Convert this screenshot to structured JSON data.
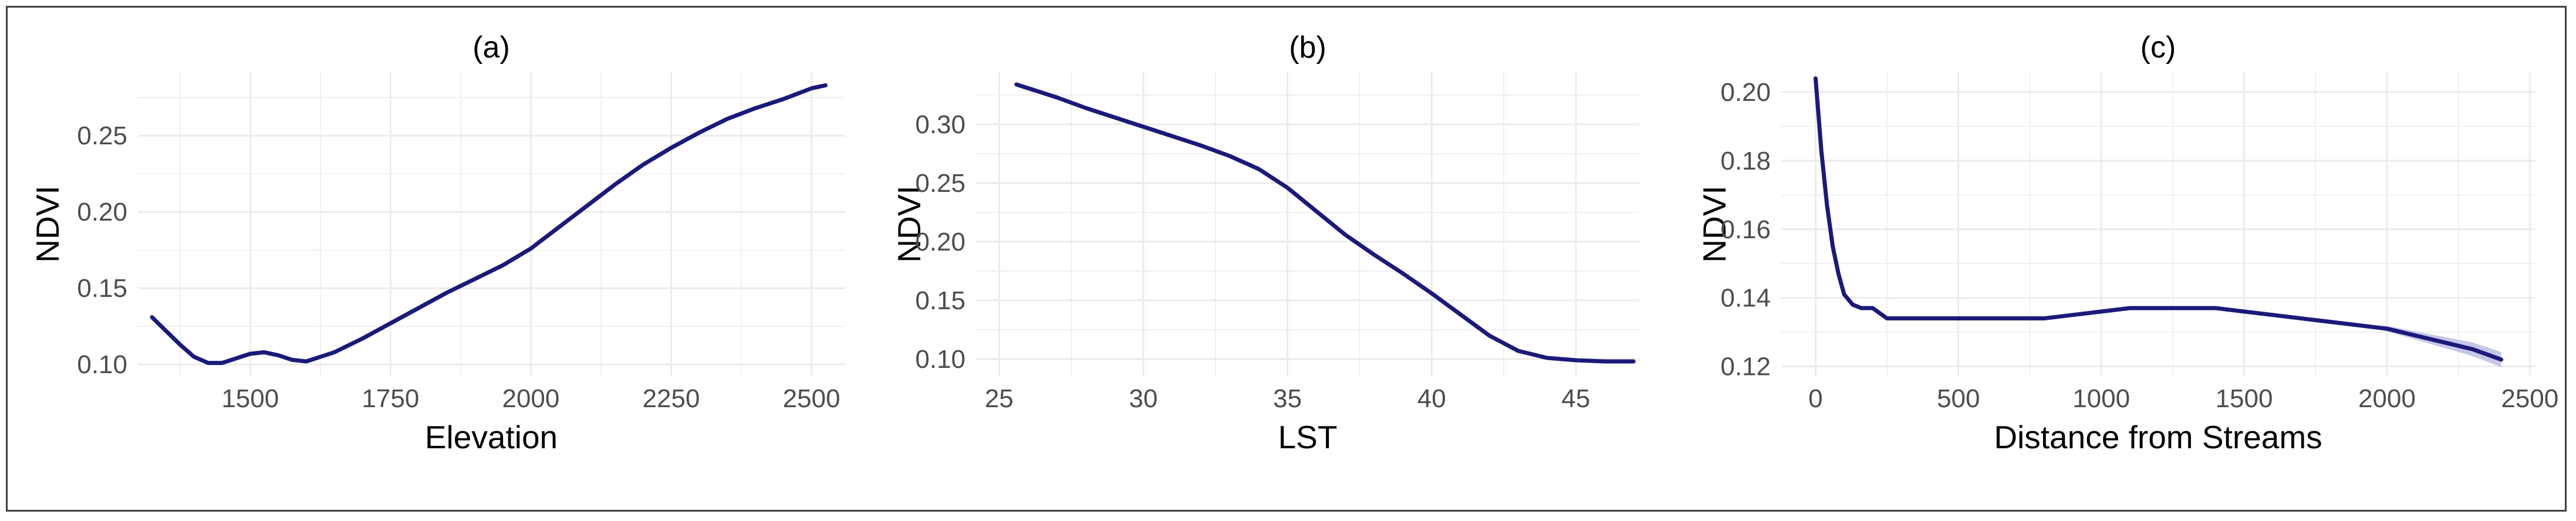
{
  "chart_data": [
    {
      "type": "line",
      "title": "(a)",
      "xlabel": "Elevation",
      "ylabel": "NDVI",
      "xlim": [
        1300,
        2560
      ],
      "ylim": [
        0.092,
        0.292
      ],
      "xticks": [
        1500,
        1750,
        2000,
        2250,
        2500
      ],
      "xtick_labels": [
        "1500",
        "1750",
        "2000",
        "2250",
        "2500"
      ],
      "yticks": [
        0.1,
        0.15,
        0.2,
        0.25
      ],
      "ytick_labels": [
        "0.10",
        "0.15",
        "0.20",
        "0.25"
      ],
      "grid": true,
      "line_color": "#1a1a7a",
      "series": [
        {
          "x": [
            1325,
            1350,
            1375,
            1400,
            1425,
            1450,
            1475,
            1500,
            1525,
            1550,
            1575,
            1600,
            1625,
            1650,
            1700,
            1750,
            1800,
            1850,
            1900,
            1950,
            2000,
            2050,
            2100,
            2150,
            2200,
            2250,
            2300,
            2350,
            2400,
            2450,
            2500,
            2525
          ],
          "y": [
            0.131,
            0.122,
            0.113,
            0.105,
            0.101,
            0.101,
            0.104,
            0.107,
            0.108,
            0.106,
            0.103,
            0.102,
            0.105,
            0.108,
            0.117,
            0.127,
            0.137,
            0.147,
            0.156,
            0.165,
            0.176,
            0.19,
            0.204,
            0.218,
            0.231,
            0.242,
            0.252,
            0.261,
            0.268,
            0.274,
            0.281,
            0.283
          ]
        }
      ]
    },
    {
      "type": "line",
      "title": "(b)",
      "xlabel": "LST",
      "ylabel": "NDVI",
      "xlim": [
        24.2,
        47.2
      ],
      "ylim": [
        0.085,
        0.345
      ],
      "xticks": [
        25,
        30,
        35,
        40,
        45
      ],
      "xtick_labels": [
        "25",
        "30",
        "35",
        "40",
        "45"
      ],
      "yticks": [
        0.1,
        0.15,
        0.2,
        0.25,
        0.3
      ],
      "ytick_labels": [
        "0.10",
        "0.15",
        "0.20",
        "0.25",
        "0.30"
      ],
      "grid": true,
      "line_color": "#1a1a7a",
      "series": [
        {
          "x": [
            25.6,
            27,
            28,
            29,
            30,
            31,
            32,
            33,
            34,
            35,
            36,
            37,
            38,
            39,
            40,
            41,
            42,
            43,
            44,
            45,
            46,
            47
          ],
          "y": [
            0.334,
            0.323,
            0.314,
            0.306,
            0.298,
            0.29,
            0.282,
            0.273,
            0.262,
            0.246,
            0.226,
            0.206,
            0.189,
            0.173,
            0.156,
            0.138,
            0.12,
            0.107,
            0.101,
            0.099,
            0.098,
            0.098
          ]
        }
      ]
    },
    {
      "type": "line",
      "title": "(c)",
      "xlabel": "Distance from Streams",
      "ylabel": "NDVI",
      "xlim": [
        -120,
        2520
      ],
      "ylim": [
        0.117,
        0.206
      ],
      "xticks": [
        0,
        500,
        1000,
        1500,
        2000,
        2500
      ],
      "xtick_labels": [
        "0",
        "500",
        "1000",
        "1500",
        "2000",
        "2500"
      ],
      "yticks": [
        0.12,
        0.14,
        0.16,
        0.18,
        0.2
      ],
      "ytick_labels": [
        "0.12",
        "0.14",
        "0.16",
        "0.18",
        "0.20"
      ],
      "grid": true,
      "line_color": "#1a1a7a",
      "band_color": "#b8b8e0",
      "series": [
        {
          "x": [
            0,
            20,
            40,
            60,
            80,
            100,
            130,
            160,
            200,
            250,
            300,
            400,
            500,
            600,
            700,
            800,
            900,
            1000,
            1100,
            1200,
            1300,
            1400,
            1500,
            1600,
            1700,
            1800,
            1900,
            2000,
            2100,
            2200,
            2300,
            2400
          ],
          "y": [
            0.204,
            0.183,
            0.167,
            0.155,
            0.147,
            0.141,
            0.138,
            0.137,
            0.137,
            0.134,
            0.134,
            0.134,
            0.134,
            0.134,
            0.134,
            0.134,
            0.135,
            0.136,
            0.137,
            0.137,
            0.137,
            0.137,
            0.136,
            0.135,
            0.134,
            0.133,
            0.132,
            0.131,
            0.129,
            0.127,
            0.125,
            0.122
          ],
          "ci_half": [
            0,
            0,
            0,
            0,
            0,
            0,
            0,
            0,
            0,
            0,
            0,
            0,
            0,
            0,
            0,
            0,
            0,
            0,
            0,
            0,
            0,
            0,
            0,
            0,
            0,
            0,
            0,
            0.0008,
            0.0012,
            0.0016,
            0.002,
            0.0022
          ]
        }
      ]
    }
  ]
}
